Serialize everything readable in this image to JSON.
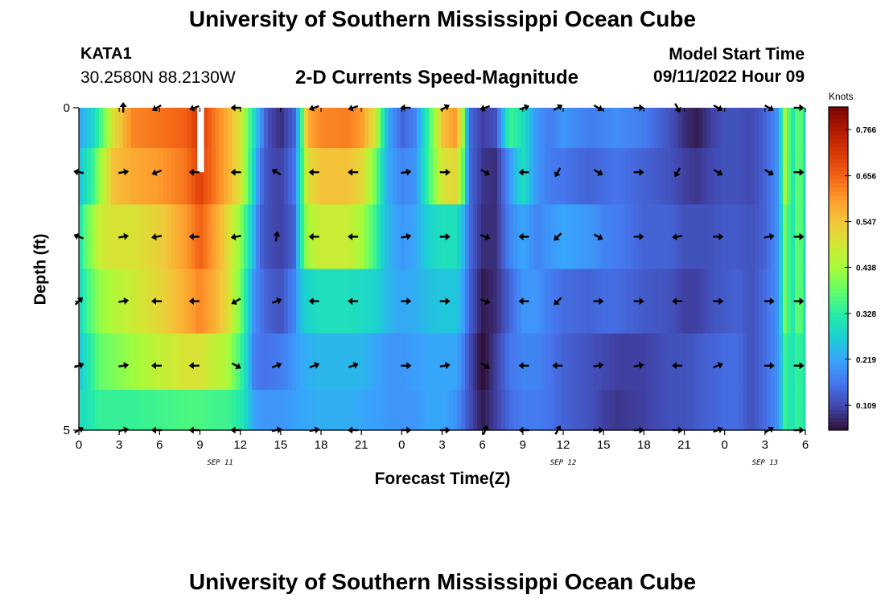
{
  "header": {
    "title": "University of Southern Mississippi Ocean Cube",
    "station": "KATA1",
    "coordinates": "30.2580N  88.2130W",
    "subtitle": "2-D Currents Speed-Magnitude",
    "model_start_label": "Model Start Time",
    "model_start_value": "09/11/2022 Hour 09"
  },
  "footer": {
    "title": "University of Southern Mississippi Ocean Cube"
  },
  "chart_data": {
    "type": "heatmap",
    "title": "2-D Currents Speed-Magnitude",
    "xlabel": "Forecast Time(Z)",
    "ylabel": "Depth (ft)",
    "x_hours": [
      0,
      3,
      6,
      9,
      12,
      15,
      18,
      21,
      24,
      27,
      30,
      33,
      36,
      39,
      42,
      45,
      48,
      51,
      54
    ],
    "x_tick_labels": [
      "0",
      "3",
      "6",
      "9",
      "12",
      "15",
      "18",
      "21",
      "0",
      "3",
      "6",
      "9",
      "12",
      "15",
      "18",
      "21",
      "0",
      "3",
      "6"
    ],
    "xlim_hours": [
      0,
      54
    ],
    "date_labels": [
      {
        "label": "SEP 11",
        "hour": 10.5
      },
      {
        "label": "SEP 12",
        "hour": 36
      },
      {
        "label": "SEP 13",
        "hour": 51
      }
    ],
    "depth_range_ft": [
      0,
      5
    ],
    "depth_tick_labels": [
      {
        "label": "0",
        "depth": 0
      },
      {
        "label": "5",
        "depth": 5
      }
    ],
    "depth_levels": [
      0.25,
      1,
      2,
      3,
      4,
      4.75
    ],
    "colorbar": {
      "units": "Knots",
      "ticks": [
        0.109,
        0.219,
        0.328,
        0.438,
        0.547,
        0.656,
        0.766
      ],
      "range": [
        0.05,
        0.82
      ],
      "colors": [
        "#30123b",
        "#4145ab",
        "#4675ed",
        "#39a2fc",
        "#1bcfd4",
        "#24eca6",
        "#61fc6c",
        "#a4fc3b",
        "#d1e834",
        "#f3c63a",
        "#fe9b2d",
        "#f36315",
        "#d93806",
        "#b11901",
        "#7a0402"
      ]
    },
    "speed_profiles": [
      {
        "depth": 0.25,
        "hours": [
          0,
          0.5,
          1,
          1.5,
          2.5,
          4,
          6,
          8,
          9,
          10,
          11,
          12,
          12.5,
          13,
          13.5,
          14,
          15,
          16,
          16.5,
          17,
          18,
          20,
          21,
          22,
          22.5,
          23,
          24,
          25,
          26,
          27,
          28,
          28.5,
          29,
          30,
          31,
          32,
          33,
          34,
          35,
          36,
          38,
          39,
          40,
          42,
          44,
          45,
          46,
          47,
          48,
          49,
          50,
          51,
          52,
          52.5,
          53,
          53.5,
          54
        ],
        "values": [
          0.22,
          0.25,
          0.28,
          0.34,
          0.5,
          0.62,
          0.64,
          0.66,
          0.72,
          0.64,
          0.58,
          0.5,
          0.4,
          0.3,
          0.2,
          0.12,
          0.08,
          0.14,
          0.3,
          0.58,
          0.62,
          0.63,
          0.6,
          0.5,
          0.35,
          0.22,
          0.14,
          0.18,
          0.35,
          0.55,
          0.6,
          0.45,
          0.15,
          0.1,
          0.12,
          0.35,
          0.3,
          0.2,
          0.17,
          0.2,
          0.17,
          0.18,
          0.19,
          0.17,
          0.12,
          0.08,
          0.06,
          0.1,
          0.12,
          0.12,
          0.11,
          0.14,
          0.2,
          0.45,
          0.3,
          0.4,
          0.3
        ]
      },
      {
        "depth": 1,
        "hours": [
          0,
          0.5,
          1,
          1.5,
          2.5,
          4,
          6,
          8,
          9,
          10,
          11,
          12,
          12.5,
          13,
          13.5,
          14,
          15,
          16,
          16.5,
          17,
          18,
          20,
          21,
          22,
          22.5,
          23,
          24,
          25,
          26,
          27,
          28,
          28.5,
          29,
          30,
          31,
          32,
          33,
          34,
          35,
          36,
          38,
          39,
          40,
          42,
          44,
          45,
          46,
          47,
          48,
          49,
          50,
          51,
          52,
          52.5,
          53,
          53.5,
          54
        ],
        "values": [
          0.25,
          0.3,
          0.34,
          0.42,
          0.55,
          0.58,
          0.6,
          0.64,
          0.7,
          0.64,
          0.58,
          0.5,
          0.4,
          0.28,
          0.16,
          0.12,
          0.1,
          0.16,
          0.3,
          0.5,
          0.55,
          0.55,
          0.52,
          0.4,
          0.3,
          0.22,
          0.18,
          0.2,
          0.35,
          0.5,
          0.52,
          0.4,
          0.15,
          0.09,
          0.08,
          0.2,
          0.3,
          0.2,
          0.17,
          0.16,
          0.14,
          0.15,
          0.16,
          0.14,
          0.12,
          0.1,
          0.09,
          0.11,
          0.12,
          0.12,
          0.11,
          0.14,
          0.2,
          0.45,
          0.3,
          0.4,
          0.3
        ]
      },
      {
        "depth": 2,
        "hours": [
          0,
          0.5,
          1,
          1.5,
          2.5,
          4,
          6,
          8,
          9,
          10,
          11,
          12,
          12.5,
          13,
          13.5,
          14,
          15,
          16,
          16.5,
          17,
          18,
          20,
          21,
          22,
          22.5,
          23,
          24,
          25,
          26,
          27,
          28,
          28.5,
          29,
          30,
          31,
          32,
          33,
          34,
          35,
          36,
          38,
          39,
          40,
          42,
          44,
          45,
          46,
          47,
          48,
          49,
          50,
          51,
          52,
          52.5,
          53,
          53.5,
          54
        ],
        "values": [
          0.3,
          0.38,
          0.42,
          0.48,
          0.5,
          0.5,
          0.53,
          0.6,
          0.66,
          0.6,
          0.52,
          0.42,
          0.33,
          0.24,
          0.14,
          0.12,
          0.1,
          0.14,
          0.3,
          0.44,
          0.48,
          0.48,
          0.44,
          0.35,
          0.28,
          0.24,
          0.2,
          0.22,
          0.28,
          0.3,
          0.3,
          0.25,
          0.15,
          0.08,
          0.08,
          0.18,
          0.22,
          0.18,
          0.2,
          0.22,
          0.2,
          0.18,
          0.17,
          0.14,
          0.14,
          0.12,
          0.12,
          0.12,
          0.13,
          0.13,
          0.12,
          0.14,
          0.2,
          0.4,
          0.3,
          0.4,
          0.3
        ]
      },
      {
        "depth": 3,
        "hours": [
          0,
          0.5,
          1,
          1.5,
          2.5,
          4,
          6,
          8,
          9,
          10,
          11,
          12,
          12.5,
          13,
          13.5,
          14,
          15,
          16,
          16.5,
          17,
          18,
          20,
          21,
          22,
          22.5,
          23,
          24,
          25,
          26,
          27,
          28,
          28.5,
          29,
          30,
          31,
          32,
          33,
          34,
          35,
          36,
          38,
          39,
          40,
          42,
          44,
          45,
          46,
          47,
          48,
          49,
          50,
          51,
          52,
          52.5,
          53,
          53.5,
          54
        ],
        "values": [
          0.28,
          0.34,
          0.38,
          0.42,
          0.45,
          0.48,
          0.52,
          0.58,
          0.62,
          0.58,
          0.52,
          0.4,
          0.3,
          0.2,
          0.16,
          0.14,
          0.12,
          0.18,
          0.25,
          0.28,
          0.3,
          0.3,
          0.29,
          0.28,
          0.26,
          0.24,
          0.22,
          0.23,
          0.25,
          0.26,
          0.26,
          0.22,
          0.14,
          0.06,
          0.08,
          0.14,
          0.2,
          0.2,
          0.17,
          0.15,
          0.14,
          0.15,
          0.15,
          0.13,
          0.12,
          0.1,
          0.1,
          0.12,
          0.13,
          0.14,
          0.12,
          0.15,
          0.2,
          0.4,
          0.3,
          0.4,
          0.3
        ]
      },
      {
        "depth": 4,
        "hours": [
          0,
          0.5,
          1,
          1.5,
          2.5,
          4,
          6,
          8,
          9,
          10,
          11,
          12,
          12.5,
          13,
          13.5,
          14,
          15,
          16,
          16.5,
          17,
          18,
          20,
          21,
          22,
          22.5,
          23,
          24,
          25,
          26,
          27,
          28,
          28.5,
          29,
          30,
          31,
          32,
          33,
          34,
          35,
          36,
          38,
          39,
          40,
          42,
          44,
          45,
          46,
          47,
          48,
          49,
          50,
          51,
          52,
          52.5,
          53,
          53.5,
          54
        ],
        "values": [
          0.26,
          0.3,
          0.34,
          0.38,
          0.4,
          0.43,
          0.47,
          0.5,
          0.5,
          0.47,
          0.45,
          0.35,
          0.28,
          0.18,
          0.16,
          0.16,
          0.17,
          0.2,
          0.22,
          0.23,
          0.24,
          0.24,
          0.24,
          0.22,
          0.21,
          0.2,
          0.2,
          0.21,
          0.22,
          0.22,
          0.22,
          0.18,
          0.12,
          0.04,
          0.1,
          0.16,
          0.18,
          0.18,
          0.16,
          0.14,
          0.12,
          0.11,
          0.1,
          0.1,
          0.12,
          0.12,
          0.13,
          0.14,
          0.15,
          0.15,
          0.12,
          0.15,
          0.2,
          0.35,
          0.3,
          0.35,
          0.3
        ]
      },
      {
        "depth": 4.75,
        "hours": [
          0,
          0.5,
          1,
          1.5,
          2.5,
          4,
          6,
          8,
          9,
          10,
          11,
          12,
          12.5,
          13,
          13.5,
          14,
          15,
          16,
          16.5,
          17,
          18,
          20,
          21,
          22,
          22.5,
          23,
          24,
          25,
          26,
          27,
          28,
          28.5,
          29,
          30,
          31,
          32,
          33,
          34,
          35,
          36,
          38,
          39,
          40,
          42,
          44,
          45,
          46,
          47,
          48,
          49,
          50,
          51,
          52,
          52.5,
          53,
          53.5,
          54
        ],
        "values": [
          0.3,
          0.3,
          0.32,
          0.34,
          0.34,
          0.34,
          0.35,
          0.36,
          0.36,
          0.35,
          0.35,
          0.32,
          0.28,
          0.22,
          0.2,
          0.2,
          0.2,
          0.21,
          0.22,
          0.22,
          0.23,
          0.23,
          0.22,
          0.21,
          0.21,
          0.2,
          0.2,
          0.2,
          0.22,
          0.22,
          0.2,
          0.16,
          0.12,
          0.06,
          0.1,
          0.15,
          0.17,
          0.17,
          0.16,
          0.14,
          0.12,
          0.1,
          0.09,
          0.1,
          0.12,
          0.12,
          0.13,
          0.14,
          0.15,
          0.15,
          0.12,
          0.15,
          0.2,
          0.35,
          0.3,
          0.35,
          0.3
        ]
      }
    ],
    "missing_segment": {
      "hour_start": 8.8,
      "hour_end": 9.3,
      "depth_start": 0,
      "depth_end": 1
    },
    "vectors": {
      "hours": [
        0,
        3.3,
        5.8,
        8.6,
        11.7,
        14.7,
        17.5,
        20.4,
        24.3,
        27.2,
        30.2,
        33.1,
        35.6,
        38.6,
        41.6,
        44.5,
        47.5,
        51.3,
        53.5
      ],
      "rows": [
        {
          "depth": 0,
          "angles": [
            null,
            90,
            210,
            200,
            180,
            null,
            200,
            200,
            180,
            30,
            200,
            20,
            30,
            330,
            0,
            300,
            330,
            330,
            0
          ]
        },
        {
          "depth": 1,
          "angles": [
            170,
            10,
            200,
            180,
            180,
            150,
            180,
            180,
            10,
            0,
            330,
            180,
            240,
            330,
            0,
            240,
            330,
            330,
            0
          ]
        },
        {
          "depth": 2,
          "angles": [
            160,
            10,
            190,
            180,
            190,
            80,
            180,
            180,
            10,
            0,
            340,
            180,
            225,
            330,
            0,
            190,
            0,
            10,
            0
          ]
        },
        {
          "depth": 3,
          "angles": [
            45,
            10,
            180,
            180,
            210,
            20,
            180,
            180,
            0,
            0,
            340,
            180,
            225,
            0,
            0,
            180,
            0,
            0,
            0
          ]
        },
        {
          "depth": 4,
          "angles": [
            20,
            10,
            180,
            180,
            330,
            20,
            20,
            20,
            0,
            10,
            330,
            180,
            180,
            10,
            10,
            180,
            20,
            0,
            0
          ]
        },
        {
          "depth": 5,
          "angles": [
            30,
            10,
            180,
            180,
            180,
            10,
            10,
            180,
            0,
            0,
            70,
            180,
            60,
            0,
            0,
            0,
            20,
            30,
            0
          ]
        }
      ]
    }
  }
}
